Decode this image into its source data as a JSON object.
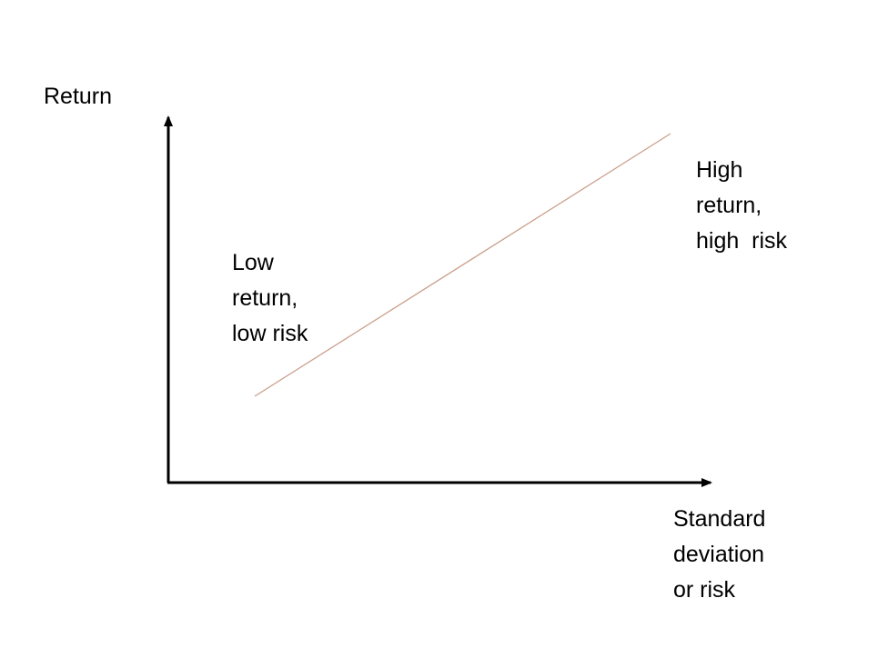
{
  "y_axis_label": "Return",
  "x_axis_label": [
    "Standard",
    "deviation",
    "or risk"
  ],
  "low_annotation": [
    "Low",
    "return,",
    "low risk"
  ],
  "high_annotation": [
    "High",
    "return,",
    "high  risk"
  ],
  "colors": {
    "axis": "#000000",
    "trend_line": "#c9a08c"
  }
}
